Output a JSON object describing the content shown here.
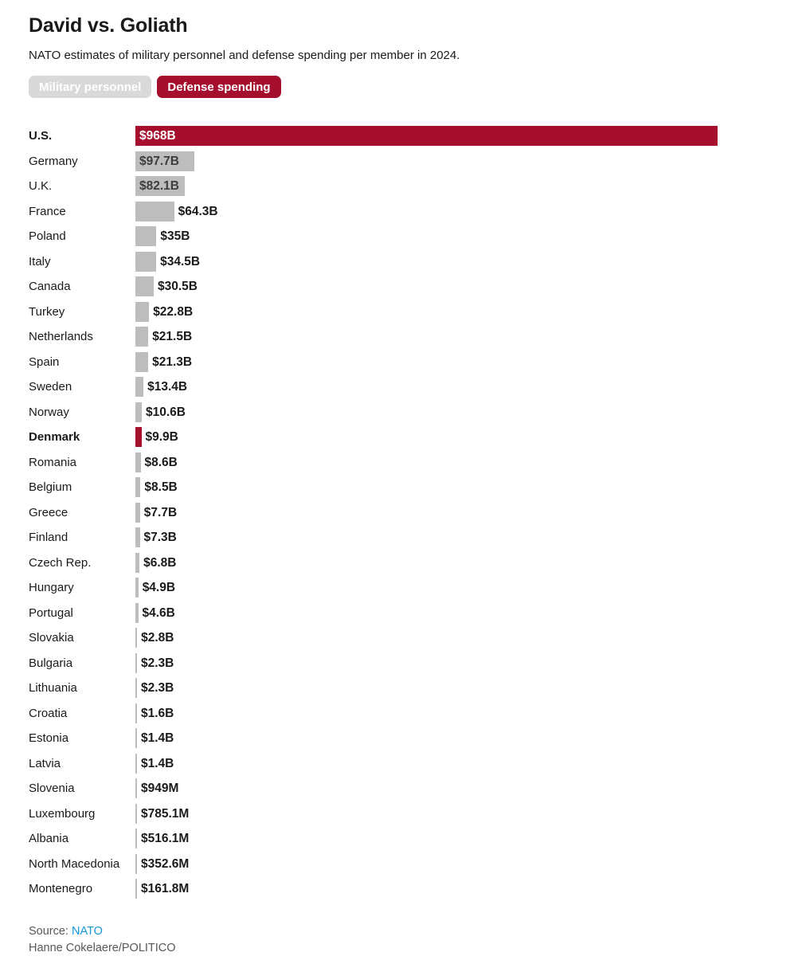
{
  "header": {
    "title": "David vs. Goliath",
    "subtitle": "NATO estimates of military personnel and defense spending per member in 2024."
  },
  "toggles": [
    {
      "label": "Military personnel",
      "active": false
    },
    {
      "label": "Defense spending",
      "active": true
    }
  ],
  "chart_data": {
    "type": "bar",
    "orientation": "horizontal",
    "unit": "USD",
    "value_unit_scale": "billions",
    "categories": [
      "U.S.",
      "Germany",
      "U.K.",
      "France",
      "Poland",
      "Italy",
      "Canada",
      "Turkey",
      "Netherlands",
      "Spain",
      "Sweden",
      "Norway",
      "Denmark",
      "Romania",
      "Belgium",
      "Greece",
      "Finland",
      "Czech Rep.",
      "Hungary",
      "Portugal",
      "Slovakia",
      "Bulgaria",
      "Lithuania",
      "Croatia",
      "Estonia",
      "Latvia",
      "Slovenia",
      "Luxembourg",
      "Albania",
      "North Macedonia",
      "Montenegro"
    ],
    "values": [
      968,
      97.7,
      82.1,
      64.3,
      35,
      34.5,
      30.5,
      22.8,
      21.5,
      21.3,
      13.4,
      10.6,
      9.9,
      8.6,
      8.5,
      7.7,
      7.3,
      6.8,
      4.9,
      4.6,
      2.8,
      2.3,
      2.3,
      1.6,
      1.4,
      1.4,
      0.949,
      0.7851,
      0.5161,
      0.3526,
      0.1618
    ],
    "value_labels": [
      "$968B",
      "$97.7B",
      "$82.1B",
      "$64.3B",
      "$35B",
      "$34.5B",
      "$30.5B",
      "$22.8B",
      "$21.5B",
      "$21.3B",
      "$13.4B",
      "$10.6B",
      "$9.9B",
      "$8.6B",
      "$8.5B",
      "$7.7B",
      "$7.3B",
      "$6.8B",
      "$4.9B",
      "$4.6B",
      "$2.8B",
      "$2.3B",
      "$2.3B",
      "$1.6B",
      "$1.4B",
      "$1.4B",
      "$949M",
      "$785.1M",
      "$516.1M",
      "$352.6M",
      "$161.8M"
    ],
    "highlighted": [
      "U.S.",
      "Denmark"
    ],
    "xlim": [
      0,
      968
    ],
    "grid": false,
    "legend": false,
    "colors": {
      "highlight": "#a50f2d",
      "default": "#bdbdbd"
    }
  },
  "footer": {
    "source_prefix": "Source: ",
    "source_link": "NATO",
    "byline": "Hanne Cokelaere/POLITICO"
  }
}
